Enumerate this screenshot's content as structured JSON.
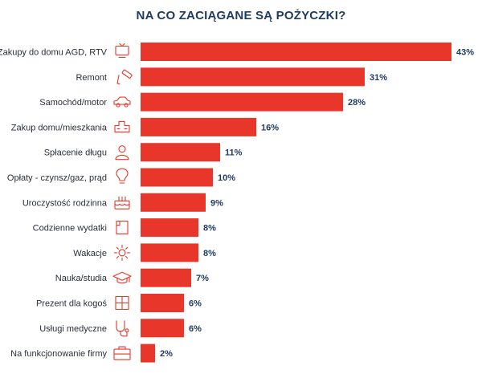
{
  "chart_data": {
    "type": "bar",
    "orientation": "horizontal",
    "title": "NA CO ZACIĄGANE SĄ POŻYCZKI?",
    "categories": [
      "Zakupy do domu AGD, RTV",
      "Remont",
      "Samochód/motor",
      "Zakup domu/mieszkania",
      "Spłacenie długu",
      "Opłaty - czynsz/gaz, prąd",
      "Uroczystość rodzinna",
      "Codzienne wydatki",
      "Wakacje",
      "Nauka/studia",
      "Prezent dla kogoś",
      "Usługi medyczne",
      "Na funkcjonowanie firmy"
    ],
    "values": [
      43,
      31,
      28,
      16,
      11,
      10,
      9,
      8,
      8,
      7,
      6,
      6,
      2
    ],
    "value_labels": [
      "43%",
      "31%",
      "28%",
      "16%",
      "11%",
      "10%",
      "9%",
      "8%",
      "8%",
      "7%",
      "6%",
      "6%",
      "2%"
    ],
    "icons": [
      "tv-icon",
      "paint-roller-icon",
      "car-icon",
      "house-icon",
      "person-icon",
      "lightbulb-icon",
      "cake-icon",
      "wallet-icon",
      "sun-icon",
      "graduation-cap-icon",
      "gift-icon",
      "stethoscope-icon",
      "briefcase-icon"
    ],
    "bar_color": "#e8372a",
    "icon_color": "#e8372a",
    "label_color": "#2a2f3a",
    "value_color": "#1f3b60",
    "title_color": "#1f3b60"
  }
}
